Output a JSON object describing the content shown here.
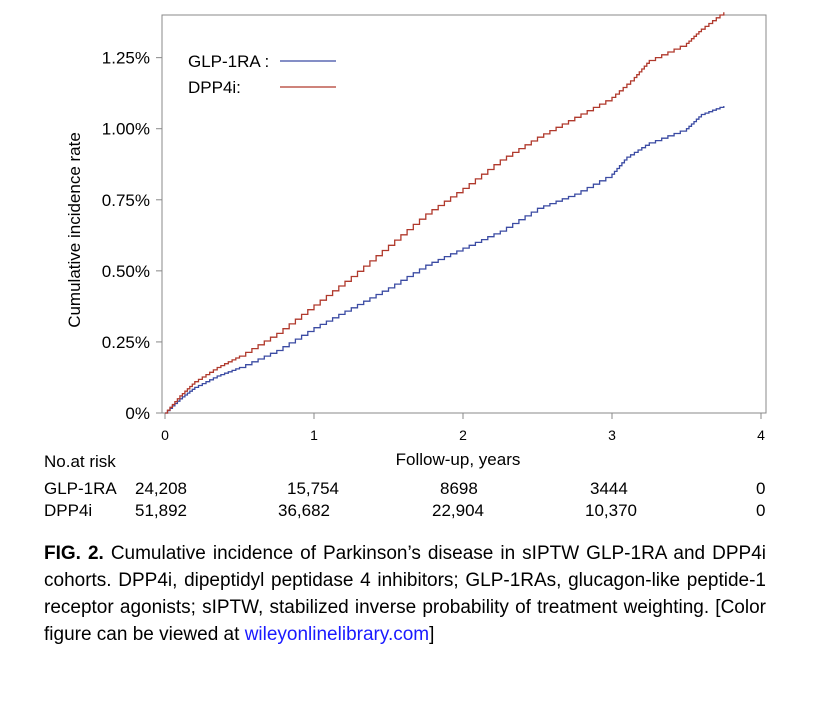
{
  "chart_data": {
    "type": "line",
    "title": "",
    "xlabel": "Follow-up, years",
    "ylabel": "Cumulative incidence rate",
    "xlim": [
      0,
      4
    ],
    "ylim": [
      0,
      1.4
    ],
    "x_ticks": [
      "0",
      "1",
      "2",
      "3",
      "4"
    ],
    "y_ticks": [
      "0%",
      "0.25%",
      "0.50%",
      "0.75%",
      "1.00%",
      "1.25%"
    ],
    "y_tick_values": [
      0,
      0.25,
      0.5,
      0.75,
      1.0,
      1.25
    ],
    "legend_position": "top-left",
    "grid": false,
    "series": [
      {
        "name": "GLP-1RA",
        "legend_label": "GLP-1RA :",
        "color": "#3b4ba3",
        "x": [
          0,
          0.1,
          0.2,
          0.35,
          0.5,
          0.75,
          1.0,
          1.25,
          1.5,
          1.75,
          2.0,
          2.25,
          2.5,
          2.75,
          3.0,
          3.1,
          3.25,
          3.5,
          3.6,
          3.75
        ],
        "y": [
          0,
          0.05,
          0.09,
          0.13,
          0.16,
          0.22,
          0.3,
          0.37,
          0.44,
          0.52,
          0.58,
          0.64,
          0.72,
          0.77,
          0.84,
          0.9,
          0.95,
          1.0,
          1.05,
          1.08
        ]
      },
      {
        "name": "DPP4i",
        "legend_label": "DPP4i:",
        "color": "#b0392c",
        "x": [
          0,
          0.1,
          0.2,
          0.35,
          0.5,
          0.75,
          1.0,
          1.25,
          1.5,
          1.75,
          2.0,
          2.25,
          2.5,
          2.75,
          3.0,
          3.15,
          3.25,
          3.5,
          3.6,
          3.75
        ],
        "y": [
          0,
          0.06,
          0.11,
          0.16,
          0.2,
          0.28,
          0.38,
          0.48,
          0.59,
          0.7,
          0.79,
          0.89,
          0.97,
          1.04,
          1.11,
          1.18,
          1.24,
          1.3,
          1.35,
          1.41
        ]
      }
    ]
  },
  "risk_table": {
    "header": "No.at risk",
    "rows": [
      {
        "label": "GLP-1RA",
        "values": [
          "24,208",
          "15,754",
          "8698",
          "3444",
          "0"
        ]
      },
      {
        "label": "DPP4i",
        "values": [
          "51,892",
          "36,682",
          "22,904",
          "10,370",
          "0"
        ]
      }
    ]
  },
  "caption": {
    "label": "FIG. 2.",
    "text": "Cumulative incidence of Parkinson’s disease in sIPTW GLP-1RA and DPP4i cohorts. DPP4i, dipeptidyl peptidase 4 inhibitors; GLP-1RAs, glucagon-like peptide-1 receptor agonists; sIPTW, stabilized inverse probability of treatment weighting. [Color figure can be viewed at",
    "link": "wileyonlinelibrary.com",
    "tail": "]"
  }
}
